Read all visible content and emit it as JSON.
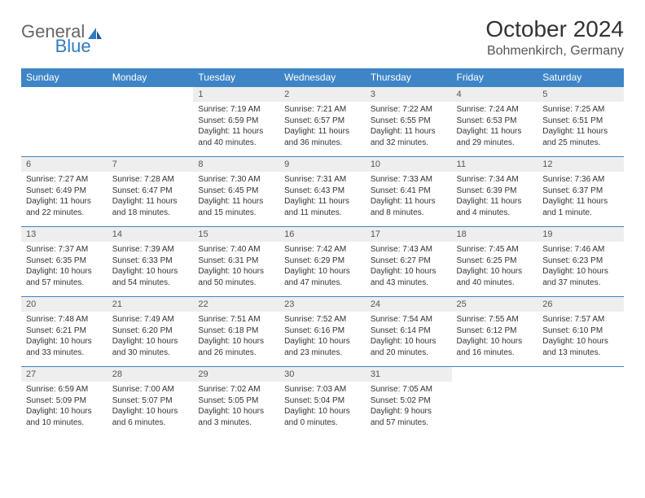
{
  "logo": {
    "text1": "General",
    "text2": "Blue"
  },
  "header": {
    "month": "October 2024",
    "location": "Bohmenkirch, Germany"
  },
  "colors": {
    "header_bg": "#3d85c6",
    "header_text": "#ffffff",
    "daynum_bg": "#eeeeee",
    "rule": "#3d85c6",
    "body_text": "#333333",
    "logo_blue": "#2f7bbf"
  },
  "weekdays": [
    "Sunday",
    "Monday",
    "Tuesday",
    "Wednesday",
    "Thursday",
    "Friday",
    "Saturday"
  ],
  "weeks": [
    [
      null,
      null,
      {
        "n": "1",
        "sr": "7:19 AM",
        "ss": "6:59 PM",
        "dl": "11 hours and 40 minutes."
      },
      {
        "n": "2",
        "sr": "7:21 AM",
        "ss": "6:57 PM",
        "dl": "11 hours and 36 minutes."
      },
      {
        "n": "3",
        "sr": "7:22 AM",
        "ss": "6:55 PM",
        "dl": "11 hours and 32 minutes."
      },
      {
        "n": "4",
        "sr": "7:24 AM",
        "ss": "6:53 PM",
        "dl": "11 hours and 29 minutes."
      },
      {
        "n": "5",
        "sr": "7:25 AM",
        "ss": "6:51 PM",
        "dl": "11 hours and 25 minutes."
      }
    ],
    [
      {
        "n": "6",
        "sr": "7:27 AM",
        "ss": "6:49 PM",
        "dl": "11 hours and 22 minutes."
      },
      {
        "n": "7",
        "sr": "7:28 AM",
        "ss": "6:47 PM",
        "dl": "11 hours and 18 minutes."
      },
      {
        "n": "8",
        "sr": "7:30 AM",
        "ss": "6:45 PM",
        "dl": "11 hours and 15 minutes."
      },
      {
        "n": "9",
        "sr": "7:31 AM",
        "ss": "6:43 PM",
        "dl": "11 hours and 11 minutes."
      },
      {
        "n": "10",
        "sr": "7:33 AM",
        "ss": "6:41 PM",
        "dl": "11 hours and 8 minutes."
      },
      {
        "n": "11",
        "sr": "7:34 AM",
        "ss": "6:39 PM",
        "dl": "11 hours and 4 minutes."
      },
      {
        "n": "12",
        "sr": "7:36 AM",
        "ss": "6:37 PM",
        "dl": "11 hours and 1 minute."
      }
    ],
    [
      {
        "n": "13",
        "sr": "7:37 AM",
        "ss": "6:35 PM",
        "dl": "10 hours and 57 minutes."
      },
      {
        "n": "14",
        "sr": "7:39 AM",
        "ss": "6:33 PM",
        "dl": "10 hours and 54 minutes."
      },
      {
        "n": "15",
        "sr": "7:40 AM",
        "ss": "6:31 PM",
        "dl": "10 hours and 50 minutes."
      },
      {
        "n": "16",
        "sr": "7:42 AM",
        "ss": "6:29 PM",
        "dl": "10 hours and 47 minutes."
      },
      {
        "n": "17",
        "sr": "7:43 AM",
        "ss": "6:27 PM",
        "dl": "10 hours and 43 minutes."
      },
      {
        "n": "18",
        "sr": "7:45 AM",
        "ss": "6:25 PM",
        "dl": "10 hours and 40 minutes."
      },
      {
        "n": "19",
        "sr": "7:46 AM",
        "ss": "6:23 PM",
        "dl": "10 hours and 37 minutes."
      }
    ],
    [
      {
        "n": "20",
        "sr": "7:48 AM",
        "ss": "6:21 PM",
        "dl": "10 hours and 33 minutes."
      },
      {
        "n": "21",
        "sr": "7:49 AM",
        "ss": "6:20 PM",
        "dl": "10 hours and 30 minutes."
      },
      {
        "n": "22",
        "sr": "7:51 AM",
        "ss": "6:18 PM",
        "dl": "10 hours and 26 minutes."
      },
      {
        "n": "23",
        "sr": "7:52 AM",
        "ss": "6:16 PM",
        "dl": "10 hours and 23 minutes."
      },
      {
        "n": "24",
        "sr": "7:54 AM",
        "ss": "6:14 PM",
        "dl": "10 hours and 20 minutes."
      },
      {
        "n": "25",
        "sr": "7:55 AM",
        "ss": "6:12 PM",
        "dl": "10 hours and 16 minutes."
      },
      {
        "n": "26",
        "sr": "7:57 AM",
        "ss": "6:10 PM",
        "dl": "10 hours and 13 minutes."
      }
    ],
    [
      {
        "n": "27",
        "sr": "6:59 AM",
        "ss": "5:09 PM",
        "dl": "10 hours and 10 minutes."
      },
      {
        "n": "28",
        "sr": "7:00 AM",
        "ss": "5:07 PM",
        "dl": "10 hours and 6 minutes."
      },
      {
        "n": "29",
        "sr": "7:02 AM",
        "ss": "5:05 PM",
        "dl": "10 hours and 3 minutes."
      },
      {
        "n": "30",
        "sr": "7:03 AM",
        "ss": "5:04 PM",
        "dl": "10 hours and 0 minutes."
      },
      {
        "n": "31",
        "sr": "7:05 AM",
        "ss": "5:02 PM",
        "dl": "9 hours and 57 minutes."
      },
      null,
      null
    ]
  ],
  "labels": {
    "sunrise": "Sunrise:",
    "sunset": "Sunset:",
    "daylight": "Daylight:"
  }
}
